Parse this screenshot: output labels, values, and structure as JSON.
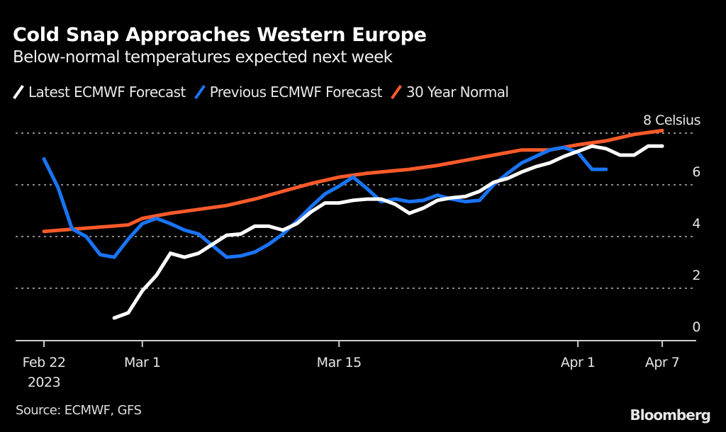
{
  "header": {
    "title": "Cold Snap Approaches Western Europe",
    "subtitle": "Below-normal temperatures expected next week"
  },
  "legend": [
    {
      "label": "Latest ECMWF Forecast",
      "color": "#ffffff"
    },
    {
      "label": "Previous ECMWF Forecast",
      "color": "#1a74f5"
    },
    {
      "label": "30 Year Normal",
      "color": "#fb5a2a"
    }
  ],
  "footer": {
    "source": "Source: ECMWF, GFS",
    "brand": "Bloomberg"
  },
  "chart_data": {
    "type": "line",
    "title": "Cold Snap Approaches Western Europe",
    "subtitle": "Below-normal temperatures expected next week",
    "xlabel": "",
    "ylabel": "Celsius",
    "ylim": [
      0,
      8
    ],
    "y_ticks": [
      {
        "value": 8,
        "label": "8 Celsius"
      },
      {
        "value": 6,
        "label": "6"
      },
      {
        "value": 4,
        "label": "4"
      },
      {
        "value": 2,
        "label": "2"
      },
      {
        "value": 0,
        "label": "0"
      }
    ],
    "x_range_days": [
      0,
      44
    ],
    "x_ticks": [
      {
        "day": 0,
        "label": "Feb 22",
        "sublabel": "2023"
      },
      {
        "day": 7,
        "label": "Mar 1",
        "sublabel": ""
      },
      {
        "day": 21,
        "label": "Mar 15",
        "sublabel": ""
      },
      {
        "day": 38,
        "label": "Apr 1",
        "sublabel": ""
      },
      {
        "day": 44,
        "label": "Apr 7",
        "sublabel": ""
      }
    ],
    "x_note": "x values are days since Feb 22, 2023",
    "grid": true,
    "legend_position": "top-left",
    "y_axis_position": "right",
    "series": [
      {
        "name": "30 Year Normal",
        "color": "#fb5a2a",
        "x": [
          0,
          6,
          7,
          9,
          11,
          13,
          15,
          17,
          19,
          21,
          23,
          26,
          28,
          30,
          32,
          34,
          36,
          38,
          40,
          42,
          44
        ],
        "values": [
          4.2,
          4.45,
          4.7,
          4.9,
          5.05,
          5.2,
          5.45,
          5.75,
          6.05,
          6.3,
          6.45,
          6.6,
          6.75,
          6.95,
          7.15,
          7.35,
          7.35,
          7.55,
          7.7,
          7.95,
          8.1
        ]
      },
      {
        "name": "Previous ECMWF Forecast",
        "color": "#1a74f5",
        "x": [
          0,
          1,
          2,
          3,
          4,
          5,
          6,
          7,
          8,
          9,
          10,
          11,
          12,
          13,
          14,
          15,
          16,
          17,
          18,
          19,
          20,
          21,
          22,
          23,
          24,
          25,
          26,
          27,
          28,
          29,
          30,
          31,
          32,
          33,
          34,
          35,
          36,
          37,
          38,
          39,
          40
        ],
        "values": [
          7.0,
          5.9,
          4.3,
          4.0,
          3.3,
          3.2,
          3.9,
          4.5,
          4.7,
          4.5,
          4.25,
          4.1,
          3.65,
          3.2,
          3.25,
          3.4,
          3.7,
          4.1,
          4.6,
          5.15,
          5.65,
          5.95,
          6.3,
          5.85,
          5.35,
          5.45,
          5.35,
          5.4,
          5.6,
          5.45,
          5.35,
          5.4,
          6.0,
          6.45,
          6.85,
          7.1,
          7.35,
          7.45,
          7.25,
          6.6,
          6.6
        ]
      },
      {
        "name": "Latest ECMWF Forecast",
        "color": "#ffffff",
        "x": [
          5,
          6,
          7,
          8,
          9,
          10,
          11,
          12,
          13,
          14,
          15,
          16,
          17,
          18,
          19,
          20,
          21,
          22,
          23,
          24,
          25,
          26,
          27,
          28,
          29,
          30,
          31,
          32,
          33,
          34,
          35,
          36,
          37,
          38,
          39,
          40,
          41,
          42,
          43,
          44
        ],
        "values": [
          0.85,
          1.05,
          1.9,
          2.5,
          3.35,
          3.2,
          3.35,
          3.7,
          4.05,
          4.1,
          4.4,
          4.4,
          4.25,
          4.5,
          4.95,
          5.3,
          5.3,
          5.4,
          5.45,
          5.45,
          5.25,
          4.9,
          5.1,
          5.4,
          5.5,
          5.55,
          5.75,
          6.1,
          6.25,
          6.5,
          6.7,
          6.85,
          7.1,
          7.3,
          7.5,
          7.4,
          7.15,
          7.15,
          7.5,
          7.5
        ]
      }
    ]
  }
}
